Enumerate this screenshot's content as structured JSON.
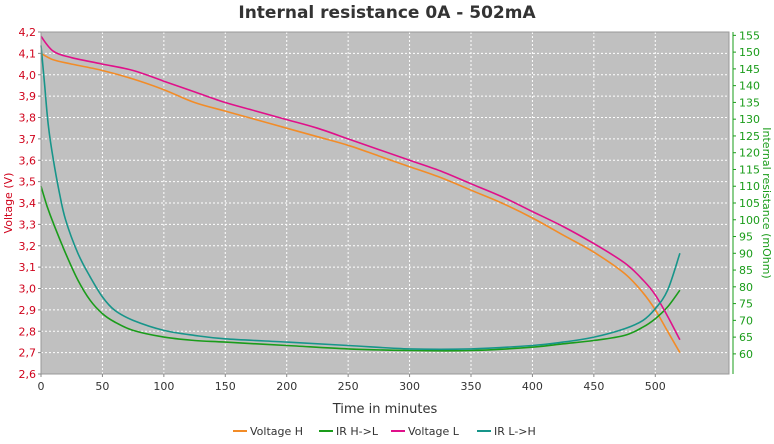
{
  "chart_data": {
    "type": "line",
    "title": "Internal resistance  0A - 502mA",
    "xlabel": "Time in minutes",
    "ylabel_left": "Voltage (V)",
    "ylabel_right": "Internal resistance (mOhm)",
    "xlim": [
      0,
      560
    ],
    "ylim_left": [
      2.6,
      4.2
    ],
    "ylim_right": [
      54,
      156
    ],
    "x_ticks": [
      0,
      50,
      100,
      150,
      200,
      250,
      300,
      350,
      400,
      450,
      500
    ],
    "x_tick_labels": [
      "0",
      "50",
      "100",
      "150",
      "200",
      "250",
      "300",
      "350",
      "400",
      "450",
      "500"
    ],
    "y_left_ticks": [
      2.6,
      2.7,
      2.8,
      2.9,
      3.0,
      3.1,
      3.2,
      3.3,
      3.4,
      3.5,
      3.6,
      3.7,
      3.8,
      3.9,
      4.0,
      4.1,
      4.2
    ],
    "y_left_tick_labels": [
      "2,6",
      "2,7",
      "2,8",
      "2,9",
      "3,0",
      "3,1",
      "3,2",
      "3,3",
      "3,4",
      "3,5",
      "3,6",
      "3,7",
      "3,8",
      "3,9",
      "4,0",
      "4,1",
      "4,2"
    ],
    "y_right_ticks": [
      60,
      65,
      70,
      75,
      80,
      85,
      90,
      95,
      100,
      105,
      110,
      115,
      120,
      125,
      130,
      135,
      140,
      145,
      150,
      155
    ],
    "y_right_tick_labels": [
      "60",
      "65",
      "70",
      "75",
      "80",
      "85",
      "90",
      "95",
      "100",
      "105",
      "110",
      "115",
      "120",
      "125",
      "130",
      "135",
      "140",
      "145",
      "150",
      "155"
    ],
    "grid": true,
    "legend_position": "bottom",
    "series": [
      {
        "name": "Voltage H",
        "axis": "left",
        "color": "#f28c28",
        "x": [
          0,
          10,
          25,
          50,
          75,
          100,
          125,
          150,
          175,
          200,
          225,
          250,
          275,
          300,
          325,
          350,
          375,
          400,
          425,
          450,
          475,
          490,
          500,
          510,
          520
        ],
        "y": [
          4.1,
          4.07,
          4.05,
          4.02,
          3.98,
          3.93,
          3.87,
          3.83,
          3.79,
          3.75,
          3.71,
          3.67,
          3.62,
          3.57,
          3.52,
          3.46,
          3.4,
          3.33,
          3.25,
          3.17,
          3.07,
          2.98,
          2.9,
          2.8,
          2.7
        ]
      },
      {
        "name": "IR H->L",
        "axis": "right",
        "color": "#1a9c1a",
        "x": [
          0,
          5,
          10,
          20,
          30,
          40,
          50,
          60,
          75,
          100,
          125,
          150,
          200,
          250,
          300,
          350,
          400,
          425,
          450,
          475,
          490,
          500,
          510,
          520
        ],
        "y": [
          110,
          104,
          99,
          90,
          82,
          76,
          72,
          69.5,
          67,
          65,
          64,
          63.5,
          62.5,
          61.5,
          61,
          61,
          62,
          63,
          64,
          65.5,
          68,
          70.5,
          74,
          79
        ]
      },
      {
        "name": "Voltage L",
        "axis": "left",
        "color": "#e0108a",
        "x": [
          0,
          10,
          25,
          50,
          75,
          100,
          125,
          150,
          175,
          200,
          225,
          250,
          275,
          300,
          325,
          350,
          375,
          400,
          425,
          450,
          475,
          490,
          500,
          510,
          520
        ],
        "y": [
          4.18,
          4.11,
          4.08,
          4.05,
          4.02,
          3.97,
          3.92,
          3.87,
          3.83,
          3.79,
          3.75,
          3.7,
          3.65,
          3.6,
          3.55,
          3.49,
          3.43,
          3.36,
          3.29,
          3.21,
          3.12,
          3.04,
          2.97,
          2.87,
          2.76
        ]
      },
      {
        "name": "IR L->H",
        "axis": "right",
        "color": "#17958a",
        "x": [
          0,
          3,
          6,
          10,
          15,
          20,
          30,
          40,
          50,
          60,
          75,
          100,
          125,
          150,
          200,
          250,
          300,
          350,
          400,
          425,
          450,
          475,
          490,
          500,
          510,
          520
        ],
        "y": [
          152,
          140,
          128,
          118,
          108,
          100,
          90,
          83,
          77,
          73,
          70,
          67,
          65.5,
          64.5,
          63.5,
          62.5,
          61.5,
          61.5,
          62.5,
          63.5,
          65,
          67.5,
          70,
          73.5,
          79,
          90
        ]
      }
    ]
  }
}
